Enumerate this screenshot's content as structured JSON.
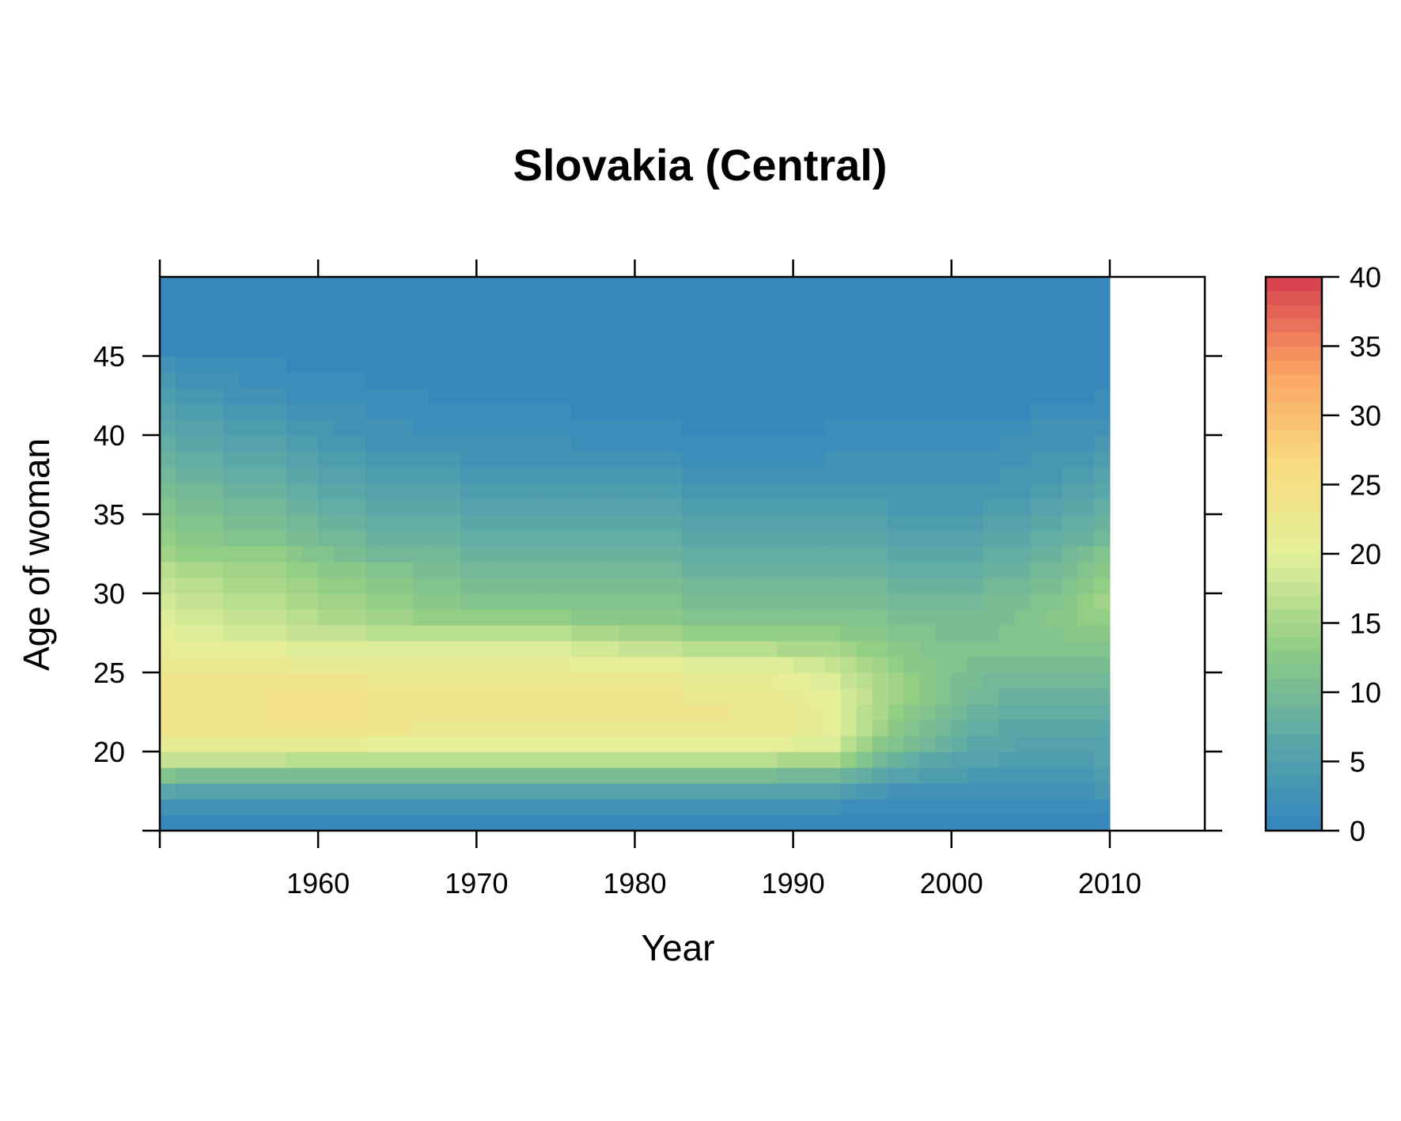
{
  "chart_data": {
    "type": "heatmap",
    "title": "Slovakia (Central)",
    "xlabel": "Year",
    "ylabel": "Age of woman",
    "x_ticks": [
      1960,
      1970,
      1980,
      1990,
      2000,
      2010
    ],
    "y_ticks": [
      20,
      25,
      30,
      35,
      40,
      45
    ],
    "colorbar_ticks": [
      0,
      5,
      10,
      15,
      20,
      25,
      30,
      35,
      40
    ],
    "xlim": [
      1950,
      2016
    ],
    "ylim": [
      15,
      50
    ],
    "zlim": [
      0,
      40
    ],
    "data_year_range": [
      1950,
      2009
    ],
    "data_age_range": [
      15,
      49
    ],
    "palette": [
      "#3385be",
      "#5ba8a8",
      "#91cd84",
      "#e4f09a",
      "#f8da7e",
      "#fba263",
      "#d53e4f"
    ],
    "profile_ages": [
      15,
      16,
      17,
      18,
      19,
      20,
      21,
      22,
      23,
      24,
      25,
      26,
      27,
      28,
      29,
      30,
      31,
      32,
      33,
      34,
      35,
      36,
      37,
      38,
      39,
      40,
      41,
      42,
      43,
      44,
      45,
      46,
      47,
      48,
      49
    ],
    "profiles": [
      {
        "year": 1950,
        "values": [
          0.8,
          2,
          6,
          11,
          17,
          21,
          23,
          23.5,
          23.5,
          23,
          22,
          21,
          20,
          19,
          18,
          17,
          16,
          14,
          13,
          12,
          11,
          10,
          9,
          8,
          7,
          6,
          5,
          4,
          3,
          2,
          0.8,
          0.4,
          0.2,
          0.1,
          0.05
        ]
      },
      {
        "year": 1957,
        "values": [
          0.8,
          2,
          5,
          10,
          17,
          21,
          23.5,
          24,
          24,
          23.5,
          22,
          20,
          18,
          17,
          16,
          15,
          14,
          13,
          11,
          10,
          9,
          8,
          7,
          6,
          5,
          4,
          3,
          2,
          1.5,
          1,
          0.5,
          0.3,
          0.1,
          0.05,
          0.02
        ]
      },
      {
        "year": 1962,
        "values": [
          0.7,
          2,
          5,
          10,
          16,
          21,
          23.5,
          24,
          24,
          23,
          21,
          19,
          17,
          15,
          14,
          13,
          12,
          10,
          9,
          8,
          7,
          6,
          5,
          4,
          3,
          2.5,
          2,
          1.5,
          1,
          0.5,
          0.3,
          0.1,
          0.05,
          0.02,
          0
        ]
      },
      {
        "year": 1968,
        "values": [
          0.7,
          2,
          5,
          10,
          16,
          20,
          22.5,
          23,
          23,
          22,
          21,
          19,
          16,
          13,
          12,
          11,
          10,
          9,
          8,
          7,
          6,
          5,
          4,
          3,
          2,
          1.5,
          1,
          0.8,
          0.5,
          0.3,
          0.1,
          0.05,
          0,
          0,
          0
        ]
      },
      {
        "year": 1975,
        "values": [
          0.8,
          2,
          5,
          10,
          16,
          20,
          22.5,
          23.5,
          23.5,
          22.5,
          21,
          19,
          16,
          13,
          11,
          10,
          9,
          8,
          7,
          6,
          5,
          4,
          3,
          2.5,
          2,
          1.5,
          1,
          0.5,
          0.3,
          0.1,
          0.05,
          0,
          0,
          0,
          0
        ]
      },
      {
        "year": 1982,
        "values": [
          0.8,
          2,
          5,
          10,
          16,
          20.5,
          22.5,
          23.5,
          23,
          22,
          20,
          17,
          14,
          12,
          11,
          10,
          9,
          8,
          7,
          6,
          5,
          4,
          3,
          2,
          1.5,
          1,
          0.5,
          0.3,
          0.1,
          0.05,
          0,
          0,
          0,
          0,
          0
        ]
      },
      {
        "year": 1988,
        "values": [
          0.8,
          2,
          5,
          10,
          16,
          20.5,
          22.5,
          22.5,
          22,
          21,
          19.5,
          16,
          13,
          11,
          10,
          9,
          8,
          7,
          6,
          5,
          4,
          3,
          2,
          1.5,
          1,
          0.5,
          0.3,
          0.1,
          0.05,
          0,
          0,
          0,
          0,
          0,
          0
        ]
      },
      {
        "year": 1992,
        "values": [
          0.8,
          2,
          5,
          9,
          15,
          19,
          20.5,
          20.5,
          20,
          19,
          17.5,
          15,
          13,
          11,
          10,
          9,
          8,
          7,
          6,
          5,
          4,
          3,
          2.5,
          2,
          1.5,
          1,
          0.5,
          0.3,
          0.1,
          0.05,
          0,
          0,
          0,
          0,
          0
        ]
      },
      {
        "year": 1995,
        "values": [
          0.5,
          1.5,
          3,
          6,
          9,
          12,
          14,
          15,
          15.5,
          15,
          14,
          13,
          12,
          11,
          10,
          9,
          8,
          7,
          6,
          5,
          4,
          3,
          2.5,
          2,
          1.5,
          1,
          0.5,
          0.3,
          0.1,
          0.05,
          0,
          0,
          0,
          0,
          0
        ]
      },
      {
        "year": 2000,
        "values": [
          0.3,
          1.2,
          2.5,
          4,
          5.5,
          7,
          8,
          9,
          10,
          10.5,
          11,
          11,
          10.5,
          10,
          9.5,
          8.5,
          7.5,
          6.5,
          5.5,
          4.5,
          3.5,
          3,
          2.5,
          2,
          1.5,
          1,
          0.5,
          0.3,
          0.1,
          0.05,
          0,
          0,
          0,
          0,
          0
        ]
      },
      {
        "year": 2005,
        "values": [
          0.5,
          1.5,
          2.5,
          3.5,
          4.5,
          5.5,
          6,
          7,
          8,
          9,
          10,
          11,
          11.5,
          11.5,
          11,
          10,
          9,
          8,
          7,
          6,
          5,
          4,
          3.5,
          3,
          2.5,
          2,
          1,
          0.5,
          0.3,
          0.1,
          0.05,
          0,
          0,
          0,
          0
        ]
      },
      {
        "year": 2009,
        "values": [
          0.8,
          1.8,
          3,
          4,
          5,
          5.5,
          6,
          7,
          8,
          9,
          10,
          11,
          12.5,
          13.5,
          14,
          13.5,
          12,
          11,
          9.5,
          8,
          7,
          6,
          5,
          4,
          3,
          2.5,
          1.5,
          1,
          0.5,
          0.2,
          0.1,
          0,
          0,
          0,
          0
        ]
      }
    ]
  }
}
